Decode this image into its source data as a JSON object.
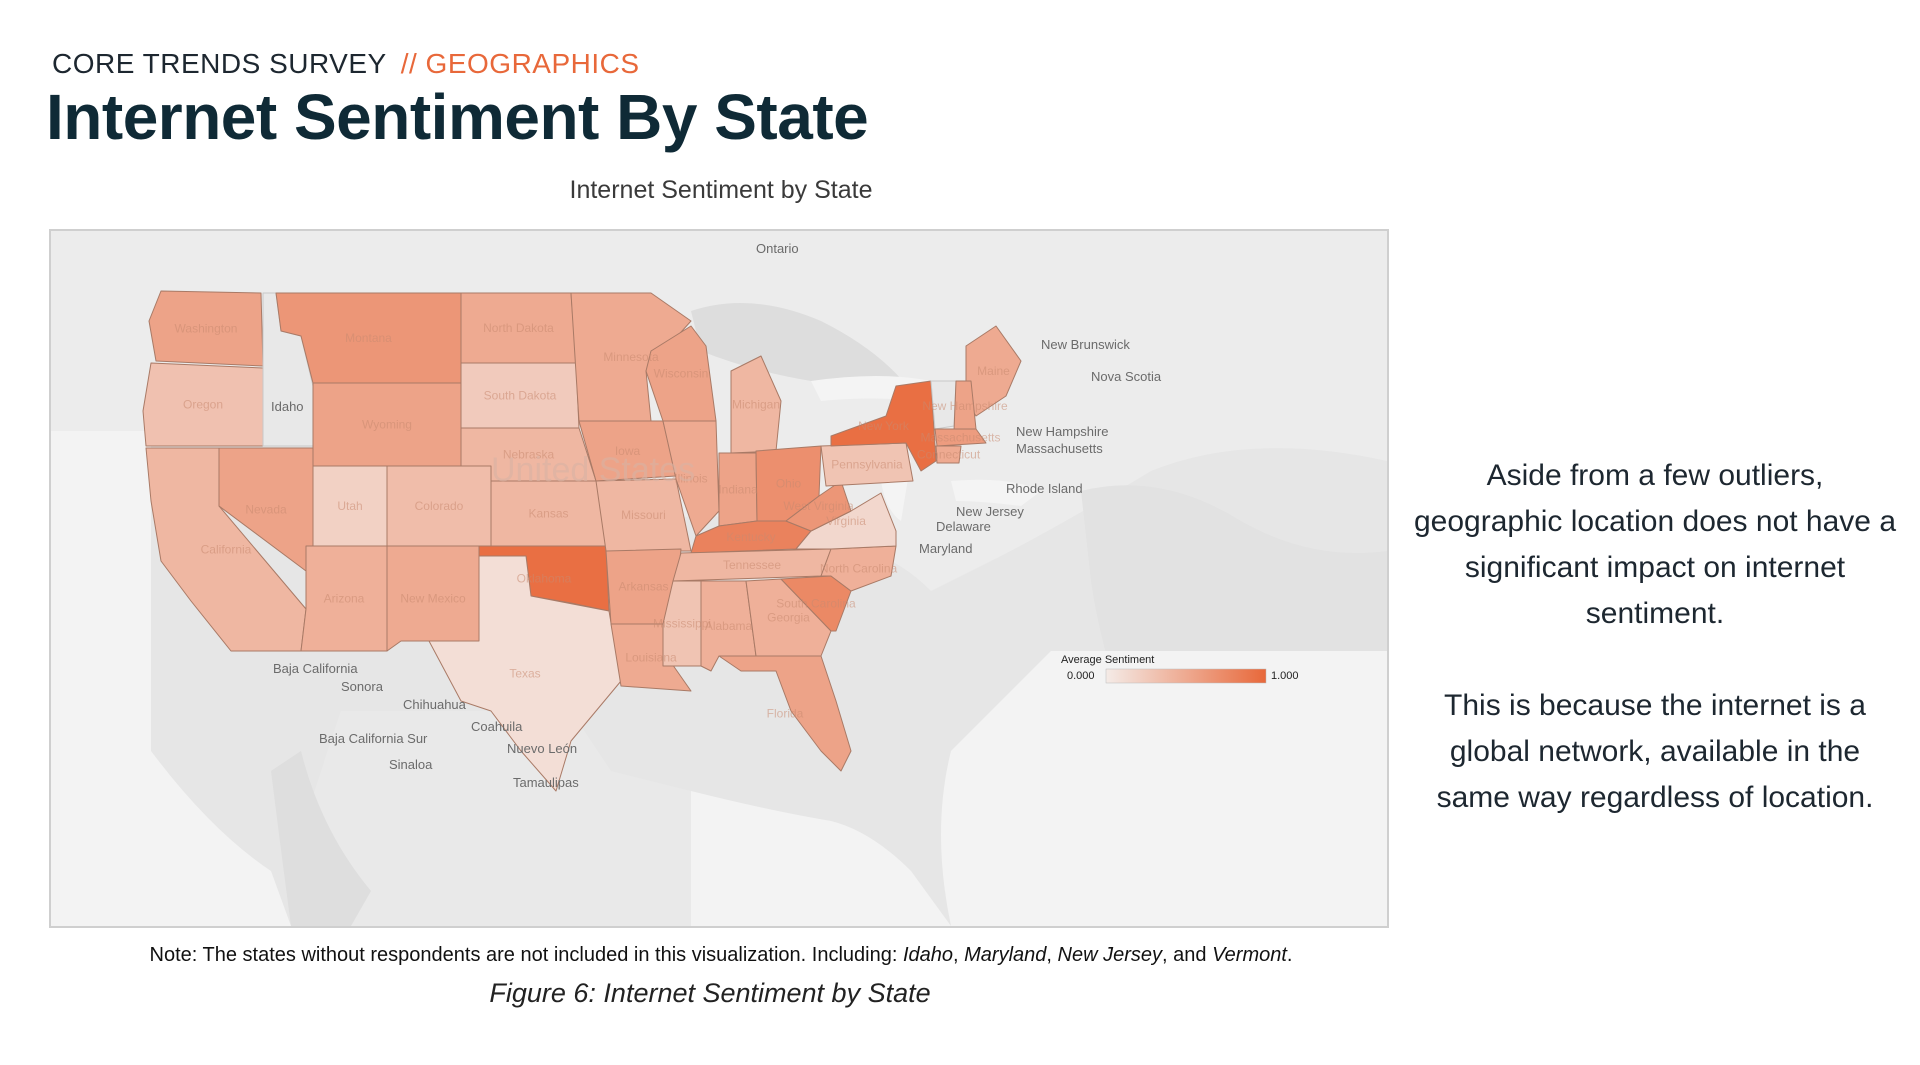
{
  "header": {
    "kicker": "CORE TRENDS SURVEY",
    "kicker_accent": "// GEOGRAPHICS",
    "title": "Internet Sentiment By State"
  },
  "map": {
    "title": "Internet Sentiment by State",
    "legend": {
      "title": "Average Sentiment",
      "min_label": "0.000",
      "max_label": "1.000",
      "low_color": "#f4ebe7",
      "high_color": "#e8683a"
    },
    "place_labels": {
      "ontario": "Ontario",
      "new_brunswick": "New Brunswick",
      "nova_scotia": "Nova Scotia",
      "idaho": "Idaho",
      "new_hampshire": "New Hampshire",
      "massachusetts": "Massachusetts",
      "rhode_island": "Rhode Island",
      "new_jersey": "New Jersey",
      "delaware": "Delaware",
      "maryland": "Maryland",
      "baja_california": "Baja California",
      "sonora": "Sonora",
      "chihuahua": "Chihuahua",
      "coahuila": "Coahuila",
      "baja_california_sur": "Baja California Sur",
      "sinaloa": "Sinaloa",
      "nuevo_leon": "Nuevo León",
      "tamaulipas": "Tamaulipas",
      "united_states": "United States"
    },
    "states": [
      {
        "name": "Washington",
        "sentiment": 0.55
      },
      {
        "name": "Oregon",
        "sentiment": 0.32
      },
      {
        "name": "California",
        "sentiment": 0.4
      },
      {
        "name": "Idaho",
        "sentiment": null
      },
      {
        "name": "Nevada",
        "sentiment": 0.55
      },
      {
        "name": "Montana",
        "sentiment": 0.65
      },
      {
        "name": "Wyoming",
        "sentiment": 0.55
      },
      {
        "name": "Utah",
        "sentiment": 0.2
      },
      {
        "name": "Colorado",
        "sentiment": 0.35
      },
      {
        "name": "Arizona",
        "sentiment": 0.45
      },
      {
        "name": "New Mexico",
        "sentiment": 0.5
      },
      {
        "name": "North Dakota",
        "sentiment": 0.5
      },
      {
        "name": "South Dakota",
        "sentiment": 0.25
      },
      {
        "name": "Nebraska",
        "sentiment": 0.4
      },
      {
        "name": "Kansas",
        "sentiment": 0.4
      },
      {
        "name": "Oklahoma",
        "sentiment": 0.95
      },
      {
        "name": "Texas",
        "sentiment": 0.1
      },
      {
        "name": "Minnesota",
        "sentiment": 0.5
      },
      {
        "name": "Iowa",
        "sentiment": 0.55
      },
      {
        "name": "Missouri",
        "sentiment": 0.4
      },
      {
        "name": "Arkansas",
        "sentiment": 0.55
      },
      {
        "name": "Louisiana",
        "sentiment": 0.5
      },
      {
        "name": "Wisconsin",
        "sentiment": 0.55
      },
      {
        "name": "Illinois",
        "sentiment": 0.5
      },
      {
        "name": "Michigan",
        "sentiment": 0.4
      },
      {
        "name": "Indiana",
        "sentiment": 0.55
      },
      {
        "name": "Ohio",
        "sentiment": 0.7
      },
      {
        "name": "Kentucky",
        "sentiment": 0.8
      },
      {
        "name": "Tennessee",
        "sentiment": 0.4
      },
      {
        "name": "Mississippi",
        "sentiment": 0.3
      },
      {
        "name": "Alabama",
        "sentiment": 0.45
      },
      {
        "name": "Georgia",
        "sentiment": 0.45
      },
      {
        "name": "Florida",
        "sentiment": 0.55
      },
      {
        "name": "South Carolina",
        "sentiment": 0.75
      },
      {
        "name": "North Carolina",
        "sentiment": 0.45
      },
      {
        "name": "Virginia",
        "sentiment": 0.15
      },
      {
        "name": "West Virginia",
        "sentiment": 0.65
      },
      {
        "name": "Pennsylvania",
        "sentiment": 0.3
      },
      {
        "name": "New York",
        "sentiment": 0.95
      },
      {
        "name": "Vermont",
        "sentiment": null
      },
      {
        "name": "Maine",
        "sentiment": 0.5
      },
      {
        "name": "Connecticut",
        "sentiment": 0.5
      },
      {
        "name": "New Hampshire",
        "sentiment": 0.55
      },
      {
        "name": "Massachusetts",
        "sentiment": 0.6
      }
    ]
  },
  "note": {
    "prefix": "Note: The states without respondents are not included in this visualization. Including: ",
    "state1": "Idaho",
    "sep1": ", ",
    "state2": "Maryland",
    "sep2": ", ",
    "state3": "New Jersey",
    "sep3": ", and ",
    "state4": "Vermont",
    "suffix": "."
  },
  "caption": "Figure 6: Internet Sentiment by State",
  "side_text": {
    "p1": "Aside from a few outliers, geographic location does not have a significant impact on internet sentiment.",
    "p2": "This is because the internet is a global network,  available in the same way regardless of location."
  }
}
